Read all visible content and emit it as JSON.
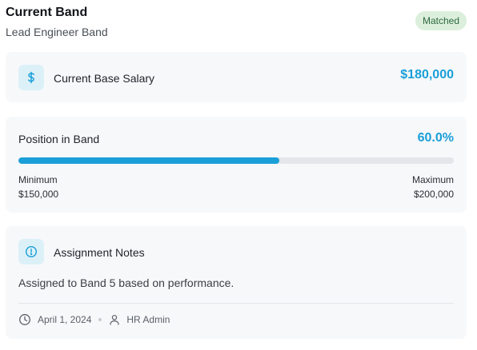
{
  "header": {
    "title": "Current Band",
    "subtitle": "Lead Engineer Band",
    "badge": "Matched"
  },
  "salary": {
    "label": "Current Base Salary",
    "value": "$180,000",
    "icon": "dollar-icon"
  },
  "position": {
    "label": "Position in Band",
    "value": "60.0%",
    "fill_fraction": 0.6,
    "min_label": "Minimum",
    "min_value": "$150,000",
    "max_label": "Maximum",
    "max_value": "$200,000"
  },
  "notes": {
    "title": "Assignment Notes",
    "text": "Assigned to Band 5 based on performance.",
    "date": "April 1, 2024",
    "author": "HR Admin",
    "icon": "info-circle-icon"
  },
  "colors": {
    "accent": "#1a9fd8",
    "badge_bg": "#dcefdc",
    "badge_text": "#2d6a3e",
    "card_bg": "#f7f8fa"
  }
}
